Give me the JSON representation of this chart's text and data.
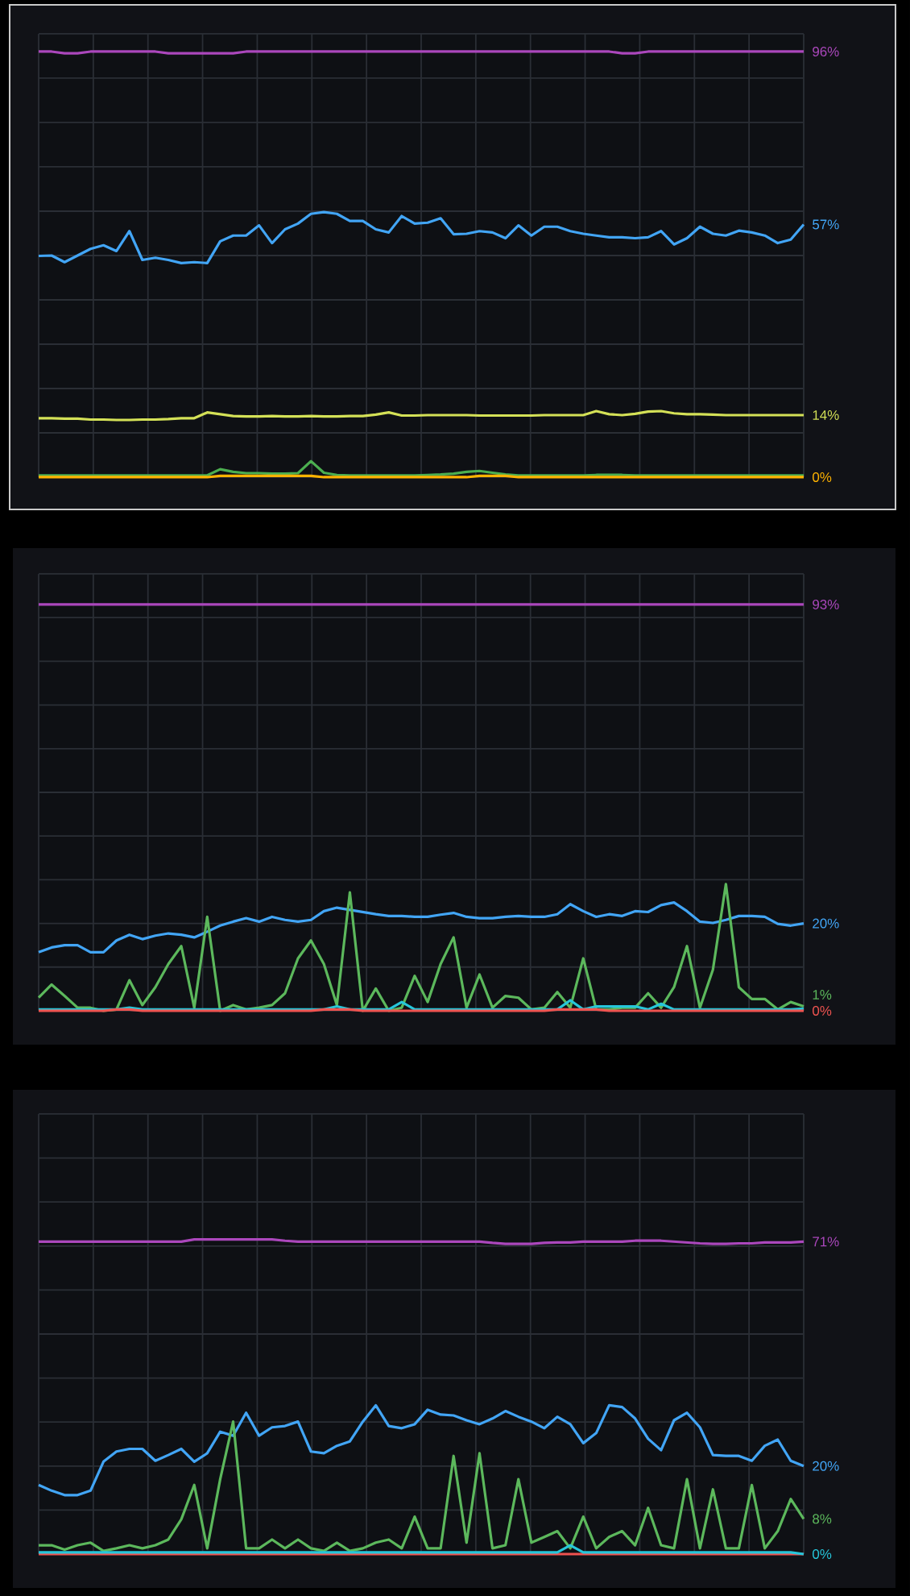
{
  "chart_data": [
    {
      "type": "line",
      "ylim": [
        0,
        100
      ],
      "grid": true,
      "tick_labels": false,
      "categories": [
        null,
        null,
        null,
        null,
        null,
        null,
        null,
        null,
        null,
        null,
        null,
        null,
        null,
        null,
        null,
        null,
        null,
        null,
        null,
        null,
        null,
        null,
        null,
        null,
        null,
        null,
        null,
        null,
        null,
        null,
        null,
        null,
        null,
        null,
        null,
        null,
        null,
        null,
        null,
        null,
        null,
        null,
        null,
        null,
        null,
        null,
        null,
        null,
        null,
        null,
        null,
        null,
        null,
        null,
        null,
        null,
        null,
        null,
        null,
        null
      ],
      "series": [
        {
          "color": "#ab47bc",
          "values": [
            96,
            96,
            95.6,
            95.6,
            96,
            96,
            96,
            96,
            96,
            96,
            95.6,
            95.6,
            95.6,
            95.6,
            95.6,
            95.6,
            96,
            96,
            96,
            96,
            96,
            96,
            96,
            96,
            96,
            96,
            96,
            96,
            96,
            96,
            96,
            96,
            96,
            96,
            96,
            96,
            96,
            96,
            96,
            96,
            96,
            96,
            96,
            96,
            96,
            95.6,
            95.6,
            96,
            96,
            96,
            96,
            96,
            96,
            96,
            96,
            96,
            96,
            96,
            96,
            96
          ],
          "value_labels": [
            null,
            null,
            null,
            null,
            null,
            null,
            null,
            null,
            null,
            null,
            null,
            null,
            null,
            null,
            null,
            null,
            null,
            null,
            null,
            null,
            null,
            null,
            null,
            null,
            null,
            null,
            null,
            null,
            null,
            null,
            null,
            null,
            null,
            null,
            null,
            null,
            null,
            null,
            null,
            null,
            null,
            null,
            null,
            null,
            null,
            null,
            null,
            null,
            null,
            null,
            null,
            null,
            null,
            null,
            null,
            null,
            null,
            null,
            null,
            "96%"
          ]
        },
        {
          "color": "#42a5f5",
          "values": [
            49.9,
            50,
            48.5,
            50,
            51.5,
            52.3,
            51,
            55.5,
            49,
            49.5,
            49,
            48.3,
            48.5,
            48.3,
            53.2,
            54.5,
            54.5,
            56.8,
            52.8,
            55.9,
            57.2,
            59.4,
            59.8,
            59.4,
            57.8,
            57.8,
            55.9,
            55.2,
            58.9,
            57.2,
            57.4,
            58.4,
            54.8,
            54.9,
            55.5,
            55.2,
            53.9,
            56.8,
            54.5,
            56.5,
            56.5,
            55.5,
            54.9,
            54.5,
            54.1,
            54.1,
            53.9,
            54.1,
            55.5,
            52.5,
            53.9,
            56.5,
            54.9,
            54.5,
            55.6,
            55.2,
            54.5,
            52.8,
            53.6,
            57
          ],
          "value_labels": [
            null,
            null,
            null,
            null,
            null,
            null,
            null,
            null,
            null,
            null,
            null,
            null,
            null,
            null,
            null,
            null,
            null,
            null,
            null,
            null,
            null,
            null,
            null,
            null,
            null,
            null,
            null,
            null,
            null,
            null,
            null,
            null,
            null,
            null,
            null,
            null,
            null,
            null,
            null,
            null,
            null,
            null,
            null,
            null,
            null,
            null,
            null,
            null,
            null,
            null,
            null,
            null,
            null,
            null,
            null,
            null,
            null,
            null,
            null,
            "57%"
          ]
        },
        {
          "color": "#d4e157",
          "values": [
            13.3,
            13.3,
            13.2,
            13.2,
            13,
            13,
            12.9,
            12.9,
            13,
            13,
            13.1,
            13.3,
            13.3,
            14.6,
            14.2,
            13.8,
            13.7,
            13.7,
            13.8,
            13.7,
            13.7,
            13.8,
            13.7,
            13.7,
            13.8,
            13.8,
            14.1,
            14.6,
            13.9,
            13.9,
            14,
            14,
            14,
            14,
            13.9,
            13.9,
            13.9,
            13.9,
            13.9,
            14,
            14,
            14,
            14,
            14.9,
            14.2,
            14,
            14.3,
            14.8,
            14.9,
            14.4,
            14.2,
            14.2,
            14.1,
            14,
            14,
            14,
            14,
            14,
            14,
            14
          ],
          "value_labels": [
            null,
            null,
            null,
            null,
            null,
            null,
            null,
            null,
            null,
            null,
            null,
            null,
            null,
            null,
            null,
            null,
            null,
            null,
            null,
            null,
            null,
            null,
            null,
            null,
            null,
            null,
            null,
            null,
            null,
            null,
            null,
            null,
            null,
            null,
            null,
            null,
            null,
            null,
            null,
            null,
            null,
            null,
            null,
            null,
            null,
            null,
            null,
            null,
            null,
            null,
            null,
            null,
            null,
            null,
            null,
            null,
            null,
            null,
            null,
            "14%"
          ]
        },
        {
          "color": "#4caf50",
          "values": [
            0.4,
            0.4,
            0.4,
            0.4,
            0.4,
            0.4,
            0.4,
            0.4,
            0.4,
            0.4,
            0.4,
            0.4,
            0.4,
            0.4,
            1.8,
            1.2,
            0.9,
            0.9,
            0.8,
            0.8,
            0.9,
            3.6,
            1,
            0.5,
            0.4,
            0.4,
            0.4,
            0.4,
            0.4,
            0.4,
            0.5,
            0.6,
            0.8,
            1.2,
            1.4,
            1,
            0.6,
            0.4,
            0.4,
            0.4,
            0.4,
            0.4,
            0.4,
            0.5,
            0.5,
            0.5,
            0.4,
            0.4,
            0.4,
            0.4,
            0.4,
            0.4,
            0.4,
            0.4,
            0.4,
            0.4,
            0.4,
            0.4,
            0.4,
            0.4
          ]
        },
        {
          "color": "#ffb300",
          "values": [
            0,
            0,
            0,
            0,
            0,
            0,
            0,
            0,
            0,
            0,
            0,
            0,
            0,
            0,
            0.3,
            0.3,
            0.3,
            0.3,
            0.3,
            0.3,
            0.3,
            0.3,
            0,
            0,
            0,
            0,
            0,
            0,
            0,
            0,
            0,
            0,
            0,
            0,
            0.3,
            0.3,
            0.3,
            0,
            0,
            0,
            0,
            0,
            0,
            0,
            0,
            0,
            0,
            0,
            0,
            0,
            0,
            0,
            0,
            0,
            0,
            0,
            0,
            0,
            0,
            0
          ],
          "value_labels": [
            null,
            null,
            null,
            null,
            null,
            null,
            null,
            null,
            null,
            null,
            null,
            null,
            null,
            null,
            null,
            null,
            null,
            null,
            null,
            null,
            null,
            null,
            null,
            null,
            null,
            null,
            null,
            null,
            null,
            null,
            null,
            null,
            null,
            null,
            null,
            null,
            null,
            null,
            null,
            null,
            null,
            null,
            null,
            null,
            null,
            null,
            null,
            null,
            null,
            null,
            null,
            null,
            null,
            null,
            null,
            null,
            null,
            null,
            null,
            "0%"
          ]
        }
      ]
    },
    {
      "type": "line",
      "ylim": [
        0,
        100
      ],
      "grid": true,
      "tick_labels": false,
      "categories": [
        null,
        null,
        null,
        null,
        null,
        null,
        null,
        null,
        null,
        null,
        null,
        null,
        null,
        null,
        null,
        null,
        null,
        null,
        null,
        null,
        null,
        null,
        null,
        null,
        null,
        null,
        null,
        null,
        null,
        null,
        null,
        null,
        null,
        null,
        null,
        null,
        null,
        null,
        null,
        null,
        null,
        null,
        null,
        null,
        null,
        null,
        null,
        null,
        null,
        null,
        null,
        null,
        null,
        null,
        null,
        null,
        null,
        null,
        null,
        null
      ],
      "series": [
        {
          "color": "#ab47bc",
          "values": [
            93,
            93,
            93,
            93,
            93,
            93,
            93,
            93,
            93,
            93,
            93,
            93,
            93,
            93,
            93,
            93,
            93,
            93,
            93,
            93,
            93,
            93,
            93,
            93,
            93,
            93,
            93,
            93,
            93,
            93,
            93,
            93,
            93,
            93,
            93,
            93,
            93,
            93,
            93,
            93,
            93,
            93,
            93,
            93,
            93,
            93,
            93,
            93,
            93,
            93,
            93,
            93,
            93,
            93,
            93,
            93,
            93,
            93,
            93,
            93
          ],
          "value_labels": [
            null,
            null,
            null,
            null,
            null,
            null,
            null,
            null,
            null,
            null,
            null,
            null,
            null,
            null,
            null,
            null,
            null,
            null,
            null,
            null,
            null,
            null,
            null,
            null,
            null,
            null,
            null,
            null,
            null,
            null,
            null,
            null,
            null,
            null,
            null,
            null,
            null,
            null,
            null,
            null,
            null,
            null,
            null,
            null,
            null,
            null,
            null,
            null,
            null,
            null,
            null,
            null,
            null,
            null,
            null,
            null,
            null,
            null,
            null,
            "93%"
          ]
        },
        {
          "color": "#42a5f5",
          "values": [
            13.4,
            14.5,
            15,
            15,
            13.4,
            13.4,
            16.1,
            17.4,
            16.4,
            17.2,
            17.7,
            17.4,
            16.8,
            18.1,
            19.5,
            20.4,
            21.2,
            20.4,
            21.5,
            20.8,
            20.4,
            20.8,
            22.8,
            23.6,
            23.1,
            22.6,
            22.1,
            21.7,
            21.7,
            21.5,
            21.5,
            22,
            22.4,
            21.5,
            21.2,
            21.2,
            21.5,
            21.7,
            21.5,
            21.5,
            22.1,
            24.4,
            22.8,
            21.5,
            22.1,
            21.7,
            22.8,
            22.6,
            24.2,
            24.8,
            22.8,
            20.4,
            20.1,
            20.8,
            21.7,
            21.7,
            21.5,
            19.9,
            19.5,
            20
          ],
          "value_labels": [
            null,
            null,
            null,
            null,
            null,
            null,
            null,
            null,
            null,
            null,
            null,
            null,
            null,
            null,
            null,
            null,
            null,
            null,
            null,
            null,
            null,
            null,
            null,
            null,
            null,
            null,
            null,
            null,
            null,
            null,
            null,
            null,
            null,
            null,
            null,
            null,
            null,
            null,
            null,
            null,
            null,
            null,
            null,
            null,
            null,
            null,
            null,
            null,
            null,
            null,
            null,
            null,
            null,
            null,
            null,
            null,
            null,
            null,
            null,
            "20%"
          ]
        },
        {
          "color": "#5cb85c",
          "values": [
            3,
            6,
            3.4,
            0.7,
            0.7,
            0,
            0.3,
            7,
            1.3,
            5.4,
            10.7,
            14.8,
            0.7,
            21.5,
            0,
            1.3,
            0.3,
            0.7,
            1.3,
            4,
            12,
            16.1,
            10.7,
            1.3,
            27.1,
            0,
            5.1,
            0,
            0.7,
            8,
            2,
            10.7,
            16.8,
            0.7,
            8.3,
            0.7,
            3.4,
            3,
            0.3,
            0.7,
            4.3,
            0.7,
            12,
            0.3,
            0.3,
            0.7,
            0.7,
            4,
            0.7,
            5.4,
            14.8,
            0.7,
            9.4,
            29,
            5.4,
            2.7,
            2.7,
            0.3,
            2,
            1
          ],
          "value_labels": [
            null,
            null,
            null,
            null,
            null,
            null,
            null,
            null,
            null,
            null,
            null,
            null,
            null,
            null,
            null,
            null,
            null,
            null,
            null,
            null,
            null,
            null,
            null,
            null,
            null,
            null,
            null,
            null,
            null,
            null,
            null,
            null,
            null,
            null,
            null,
            null,
            null,
            null,
            null,
            null,
            null,
            null,
            null,
            null,
            null,
            null,
            null,
            null,
            null,
            null,
            null,
            null,
            null,
            null,
            null,
            null,
            null,
            null,
            null,
            "1%"
          ]
        },
        {
          "color": "#26c6da",
          "values": [
            0.3,
            0.3,
            0.3,
            0.3,
            0.3,
            0.3,
            0.3,
            0.7,
            0.3,
            0.3,
            0.3,
            0.3,
            0.3,
            0.3,
            0.3,
            0.3,
            0.3,
            0.3,
            0.3,
            0.3,
            0.3,
            0.3,
            0.3,
            1,
            0.3,
            0.3,
            0.3,
            0.3,
            2,
            0.3,
            0.3,
            0.3,
            0.3,
            0.3,
            0.3,
            0.3,
            0.3,
            0.3,
            0.3,
            0.3,
            0.3,
            2.4,
            0.3,
            1,
            1,
            1,
            1,
            0.3,
            1.6,
            0.3,
            0.3,
            0.3,
            0.3,
            0.3,
            0.3,
            0.3,
            0.3,
            0.3,
            0.3,
            0.5
          ]
        },
        {
          "color": "#ef5350",
          "values": [
            0,
            0,
            0,
            0,
            0,
            0,
            0.3,
            0.3,
            0,
            0,
            0,
            0,
            0,
            0,
            0,
            0,
            0,
            0,
            0,
            0,
            0,
            0,
            0.3,
            0.3,
            0.3,
            0,
            0,
            0,
            0,
            0,
            0,
            0,
            0,
            0,
            0,
            0,
            0,
            0,
            0,
            0,
            0.3,
            0.3,
            0.3,
            0.3,
            0,
            0,
            0,
            0,
            0,
            0,
            0,
            0,
            0,
            0,
            0,
            0,
            0,
            0,
            0,
            0
          ],
          "value_labels": [
            null,
            null,
            null,
            null,
            null,
            null,
            null,
            null,
            null,
            null,
            null,
            null,
            null,
            null,
            null,
            null,
            null,
            null,
            null,
            null,
            null,
            null,
            null,
            null,
            null,
            null,
            null,
            null,
            null,
            null,
            null,
            null,
            null,
            null,
            null,
            null,
            null,
            null,
            null,
            null,
            null,
            null,
            null,
            null,
            null,
            null,
            null,
            null,
            null,
            null,
            null,
            null,
            null,
            null,
            null,
            null,
            null,
            null,
            null,
            "0%"
          ]
        }
      ]
    },
    {
      "type": "line",
      "ylim": [
        0,
        100
      ],
      "grid": true,
      "tick_labels": false,
      "categories": [
        null,
        null,
        null,
        null,
        null,
        null,
        null,
        null,
        null,
        null,
        null,
        null,
        null,
        null,
        null,
        null,
        null,
        null,
        null,
        null,
        null,
        null,
        null,
        null,
        null,
        null,
        null,
        null,
        null,
        null,
        null,
        null,
        null,
        null,
        null,
        null,
        null,
        null,
        null,
        null,
        null,
        null,
        null,
        null,
        null,
        null,
        null,
        null,
        null,
        null,
        null,
        null,
        null,
        null,
        null,
        null,
        null,
        null,
        null,
        null
      ],
      "series": [
        {
          "color": "#ab47bc",
          "values": [
            71,
            71,
            71,
            71,
            71,
            71,
            71,
            71,
            71,
            71,
            71,
            71,
            71.5,
            71.5,
            71.5,
            71.5,
            71.5,
            71.5,
            71.5,
            71.2,
            71,
            71,
            71,
            71,
            71,
            71,
            71,
            71,
            71,
            71,
            71,
            71,
            71,
            71,
            71,
            70.7,
            70.5,
            70.5,
            70.5,
            70.7,
            70.8,
            70.8,
            71,
            71,
            71,
            71,
            71.2,
            71.2,
            71.2,
            71,
            70.8,
            70.6,
            70.5,
            70.5,
            70.6,
            70.6,
            70.8,
            70.8,
            70.8,
            71
          ],
          "value_labels": [
            null,
            null,
            null,
            null,
            null,
            null,
            null,
            null,
            null,
            null,
            null,
            null,
            null,
            null,
            null,
            null,
            null,
            null,
            null,
            null,
            null,
            null,
            null,
            null,
            null,
            null,
            null,
            null,
            null,
            null,
            null,
            null,
            null,
            null,
            null,
            null,
            null,
            null,
            null,
            null,
            null,
            null,
            null,
            null,
            null,
            null,
            null,
            null,
            null,
            null,
            null,
            null,
            null,
            null,
            null,
            null,
            null,
            null,
            null,
            "71%"
          ]
        },
        {
          "color": "#42a5f5",
          "values": [
            15.7,
            14.4,
            13.4,
            13.4,
            14.4,
            21,
            23.3,
            23.9,
            23.9,
            21.2,
            22.5,
            23.9,
            21,
            22.9,
            27.8,
            26.9,
            32.1,
            26.9,
            28.8,
            29.1,
            30.1,
            23.3,
            22.9,
            24.6,
            25.6,
            30.1,
            33.8,
            29.1,
            28.6,
            29.5,
            32.8,
            31.7,
            31.5,
            30.4,
            29.5,
            30.8,
            32.5,
            31.2,
            30.1,
            28.6,
            31.2,
            29.5,
            25.2,
            27.5,
            33.8,
            33.4,
            30.8,
            26.2,
            23.6,
            30.4,
            32.1,
            28.8,
            22.5,
            22.3,
            22.3,
            21.2,
            24.6,
            26,
            21.2,
            20
          ],
          "value_labels": [
            null,
            null,
            null,
            null,
            null,
            null,
            null,
            null,
            null,
            null,
            null,
            null,
            null,
            null,
            null,
            null,
            null,
            null,
            null,
            null,
            null,
            null,
            null,
            null,
            null,
            null,
            null,
            null,
            null,
            null,
            null,
            null,
            null,
            null,
            null,
            null,
            null,
            null,
            null,
            null,
            null,
            null,
            null,
            null,
            null,
            null,
            null,
            null,
            null,
            null,
            null,
            null,
            null,
            null,
            null,
            null,
            null,
            null,
            null,
            "20%"
          ]
        },
        {
          "color": "#5cb85c",
          "values": [
            2,
            2,
            1,
            2,
            2.6,
            0.7,
            1.3,
            2,
            1.3,
            2,
            3.3,
            7.9,
            15.7,
            1.3,
            17,
            30.1,
            1.3,
            1.3,
            3.3,
            1.3,
            3.3,
            1.3,
            0.7,
            2.6,
            0.7,
            1.3,
            2.6,
            3.3,
            1.3,
            8.5,
            1.3,
            1.3,
            22.3,
            2.6,
            22.9,
            1.3,
            2,
            17,
            2.6,
            3.9,
            5.2,
            1.3,
            8.5,
            1.3,
            3.9,
            5.2,
            2,
            10.5,
            2,
            1.3,
            17,
            1.3,
            14.7,
            1.3,
            1.3,
            15.7,
            1.3,
            5.2,
            12.5,
            8
          ],
          "value_labels": [
            null,
            null,
            null,
            null,
            null,
            null,
            null,
            null,
            null,
            null,
            null,
            null,
            null,
            null,
            null,
            null,
            null,
            null,
            null,
            null,
            null,
            null,
            null,
            null,
            null,
            null,
            null,
            null,
            null,
            null,
            null,
            null,
            null,
            null,
            null,
            null,
            null,
            null,
            null,
            null,
            null,
            null,
            null,
            null,
            null,
            null,
            null,
            null,
            null,
            null,
            null,
            null,
            null,
            null,
            null,
            null,
            null,
            null,
            null,
            "8%"
          ]
        },
        {
          "color": "#ef5350",
          "values": [
            0,
            0,
            0,
            0,
            0,
            0,
            0,
            0,
            0,
            0,
            0,
            0,
            0,
            0,
            0,
            0,
            0,
            0,
            0,
            0,
            0,
            0,
            0,
            0,
            0,
            0,
            0,
            0,
            0,
            0,
            0,
            0,
            0,
            0,
            0,
            0,
            0,
            0,
            0,
            0,
            0,
            0,
            0,
            0,
            0,
            0,
            0,
            0,
            0,
            0,
            0,
            0,
            0,
            0,
            0,
            0,
            0,
            0,
            0,
            0
          ]
        },
        {
          "color": "#26c6da",
          "values": [
            0.4,
            0.4,
            0.4,
            0.4,
            0.4,
            0.4,
            0.4,
            0.4,
            0.4,
            0.4,
            0.4,
            0.4,
            0.4,
            0.4,
            0.4,
            0.4,
            0.4,
            0.4,
            0.4,
            0.4,
            0.4,
            0.4,
            0.4,
            0.4,
            0.4,
            0.4,
            0.4,
            0.4,
            0.4,
            0.4,
            0.4,
            0.4,
            0.4,
            0.4,
            0.4,
            0.4,
            0.4,
            0.4,
            0.4,
            0.4,
            0.4,
            2,
            0.4,
            0.4,
            0.4,
            0.4,
            0.4,
            0.4,
            0.4,
            0.4,
            0.4,
            0.4,
            0.4,
            0.4,
            0.4,
            0.4,
            0.4,
            0.4,
            0.4,
            0
          ],
          "value_labels": [
            null,
            null,
            null,
            null,
            null,
            null,
            null,
            null,
            null,
            null,
            null,
            null,
            null,
            null,
            null,
            null,
            null,
            null,
            null,
            null,
            null,
            null,
            null,
            null,
            null,
            null,
            null,
            null,
            null,
            null,
            null,
            null,
            null,
            null,
            null,
            null,
            null,
            null,
            null,
            null,
            null,
            null,
            null,
            null,
            null,
            null,
            null,
            null,
            null,
            null,
            null,
            null,
            null,
            null,
            null,
            null,
            null,
            null,
            null,
            "0%"
          ]
        }
      ]
    }
  ]
}
